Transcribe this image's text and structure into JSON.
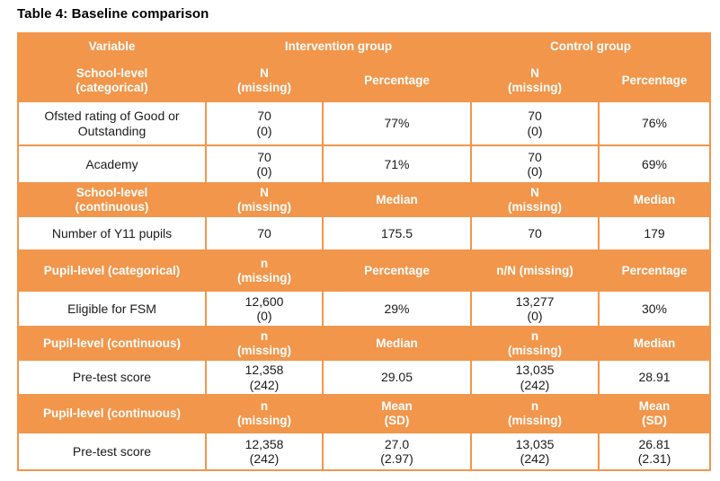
{
  "title": "Table 4: Baseline comparison",
  "colors": {
    "accent_orange": "#F2964B",
    "header_text": "#FFFFFF",
    "body_text": "#1B1B1B"
  },
  "table": {
    "rows": [
      {
        "kind": "header",
        "cells": [
          {
            "text": "Variable"
          },
          {
            "text": "Intervention group",
            "colspan": 2
          },
          {
            "text": "Control group",
            "colspan": 2
          }
        ]
      },
      {
        "kind": "header",
        "cells": [
          {
            "text": "School-level\n(categorical)"
          },
          {
            "text": "N\n(missing)"
          },
          {
            "text": "Percentage"
          },
          {
            "text": "N\n(missing)"
          },
          {
            "text": "Percentage"
          }
        ]
      },
      {
        "kind": "data",
        "cells": [
          {
            "text": "Ofsted rating of Good or\nOutstanding"
          },
          {
            "text": "70\n(0)"
          },
          {
            "text": "77%"
          },
          {
            "text": "70\n(0)"
          },
          {
            "text": "76%"
          }
        ]
      },
      {
        "kind": "data",
        "cells": [
          {
            "text": "Academy"
          },
          {
            "text": "70\n(0)"
          },
          {
            "text": "71%"
          },
          {
            "text": "70\n(0)"
          },
          {
            "text": "69%"
          }
        ]
      },
      {
        "kind": "header",
        "cells": [
          {
            "text": "School-level\n(continuous)"
          },
          {
            "text": "N\n(missing)"
          },
          {
            "text": "Median"
          },
          {
            "text": "N\n(missing)"
          },
          {
            "text": "Median"
          }
        ]
      },
      {
        "kind": "data",
        "cells": [
          {
            "text": "Number of Y11 pupils"
          },
          {
            "text": "70"
          },
          {
            "text": "175.5"
          },
          {
            "text": "70"
          },
          {
            "text": "179"
          }
        ]
      },
      {
        "kind": "header",
        "cells": [
          {
            "text": "Pupil-level (categorical)"
          },
          {
            "text": "n\n(missing)"
          },
          {
            "text": "Percentage"
          },
          {
            "text": "n/N (missing)"
          },
          {
            "text": "Percentage"
          }
        ]
      },
      {
        "kind": "data",
        "cells": [
          {
            "text": "Eligible for FSM"
          },
          {
            "text": "12,600\n(0)"
          },
          {
            "text": "29%"
          },
          {
            "text": "13,277\n(0)"
          },
          {
            "text": "30%"
          }
        ]
      },
      {
        "kind": "header",
        "cells": [
          {
            "text": "Pupil-level (continuous)"
          },
          {
            "text": "n\n(missing)"
          },
          {
            "text": "Median"
          },
          {
            "text": "n\n(missing)"
          },
          {
            "text": "Median"
          }
        ]
      },
      {
        "kind": "data",
        "cells": [
          {
            "text": "Pre-test score"
          },
          {
            "text": "12,358\n(242)"
          },
          {
            "text": "29.05"
          },
          {
            "text": "13,035\n(242)"
          },
          {
            "text": "28.91"
          }
        ]
      },
      {
        "kind": "header",
        "cells": [
          {
            "text": "Pupil-level (continuous)"
          },
          {
            "text": "n\n(missing)"
          },
          {
            "text": "Mean\n(SD)"
          },
          {
            "text": "n\n(missing)"
          },
          {
            "text": "Mean\n(SD)"
          }
        ]
      },
      {
        "kind": "data",
        "cells": [
          {
            "text": "Pre-test score"
          },
          {
            "text": "12,358\n(242)"
          },
          {
            "text": "27.0\n(2.97)"
          },
          {
            "text": "13,035\n(242)"
          },
          {
            "text": "26.81\n(2.31)"
          }
        ]
      }
    ]
  }
}
